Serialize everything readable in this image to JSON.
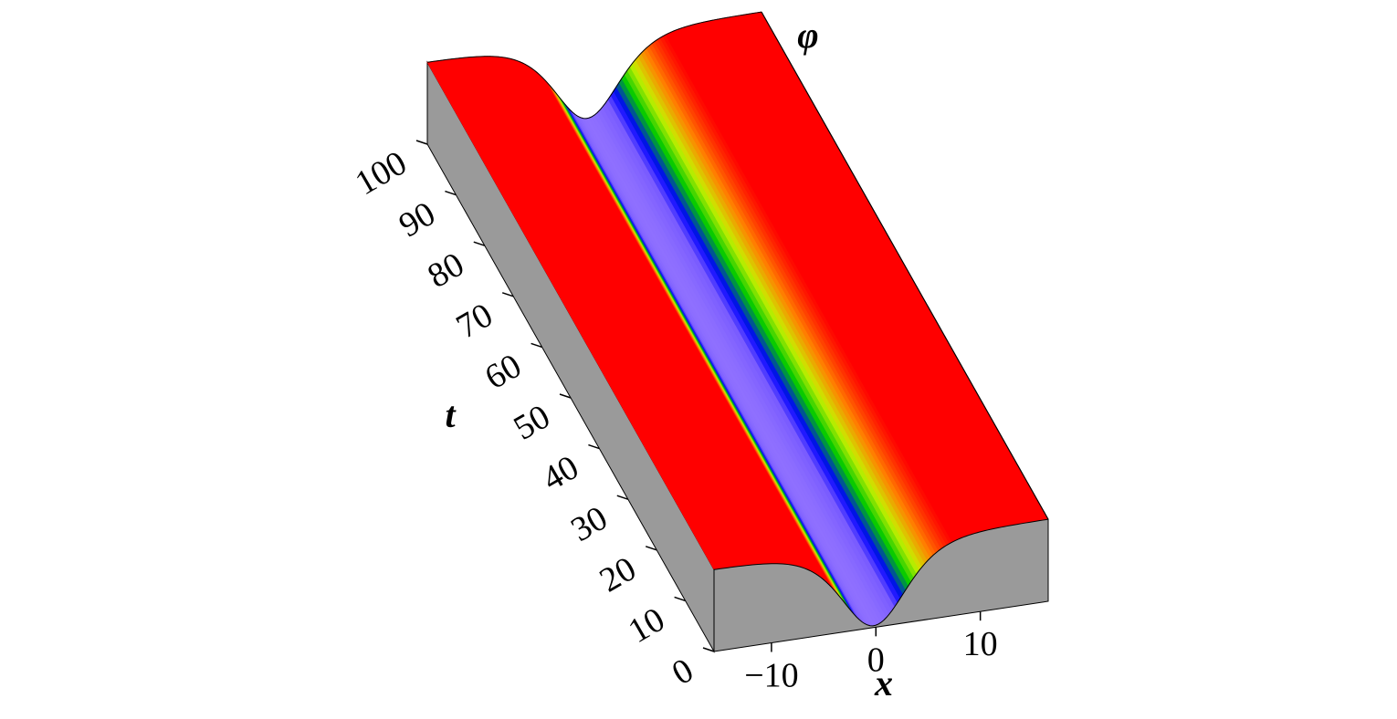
{
  "chart_data": {
    "type": "surface",
    "x_label": "x",
    "y_label": "t",
    "z_label": "φ",
    "xlim": [
      -15.5,
      16.5
    ],
    "xticks": [
      {
        "value": -10,
        "label": "−10"
      },
      0,
      10
    ],
    "ylim": [
      0,
      100
    ],
    "yticks": [
      0,
      10,
      20,
      30,
      40,
      50,
      60,
      70,
      80,
      90,
      100
    ]
  }
}
